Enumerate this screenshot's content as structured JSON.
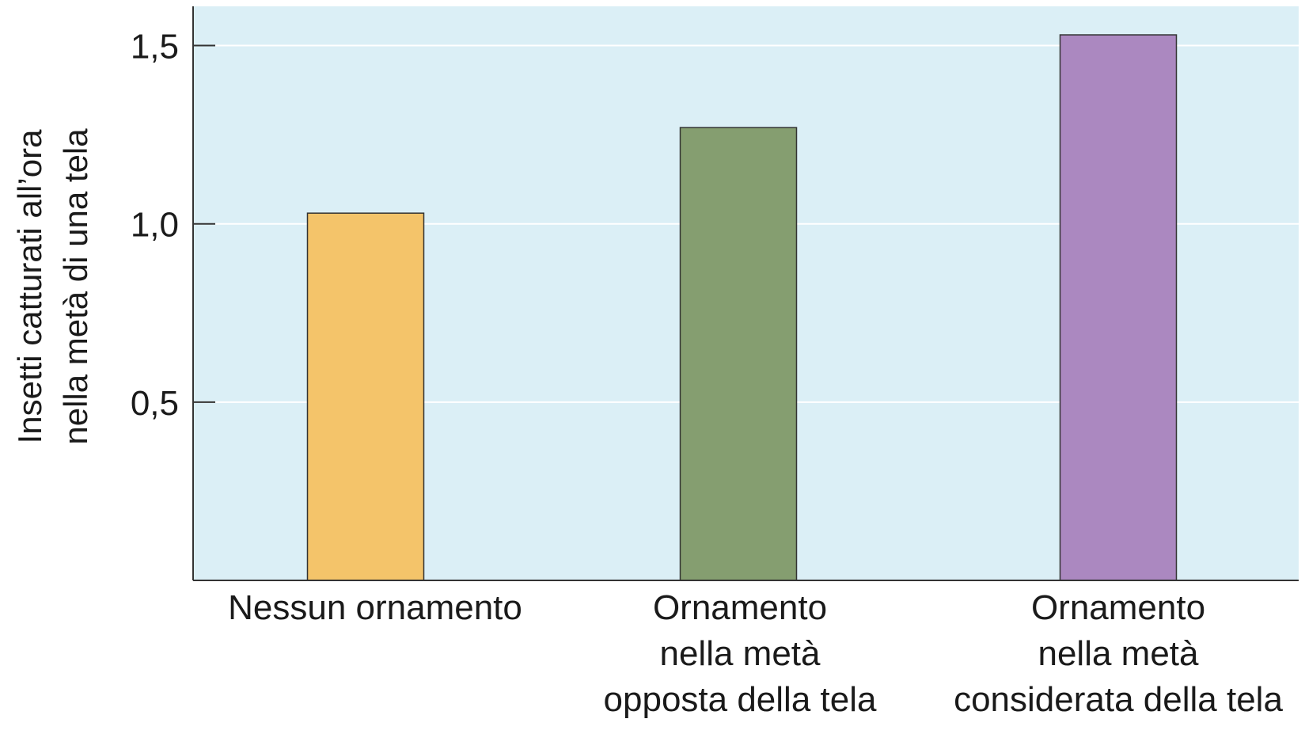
{
  "chart_data": {
    "type": "bar",
    "title": "",
    "ylabel": [
      "Insetti catturati all’ora",
      "nella metà di una tela"
    ],
    "xlabel": "",
    "categories": [
      [
        "Nessun ornamento"
      ],
      [
        "Ornamento",
        "nella metà",
        "opposta della tela"
      ],
      [
        "Ornamento",
        "nella metà",
        "considerata della tela"
      ]
    ],
    "values": [
      1.03,
      1.27,
      1.53
    ],
    "bar_colors": [
      "#f4c46a",
      "#859e70",
      "#ab88c0"
    ],
    "ylim": [
      0,
      1.61
    ],
    "yticks": [
      {
        "value": 0.5,
        "label": "0,5"
      },
      {
        "value": 1.0,
        "label": "1,0"
      },
      {
        "value": 1.5,
        "label": "1,5"
      }
    ],
    "grid": true,
    "legend": "none",
    "plot_background": "#dbeff6",
    "gridline_color": "#ffffff",
    "bar_edge_color": "#333333",
    "axis_color": "#333333"
  }
}
